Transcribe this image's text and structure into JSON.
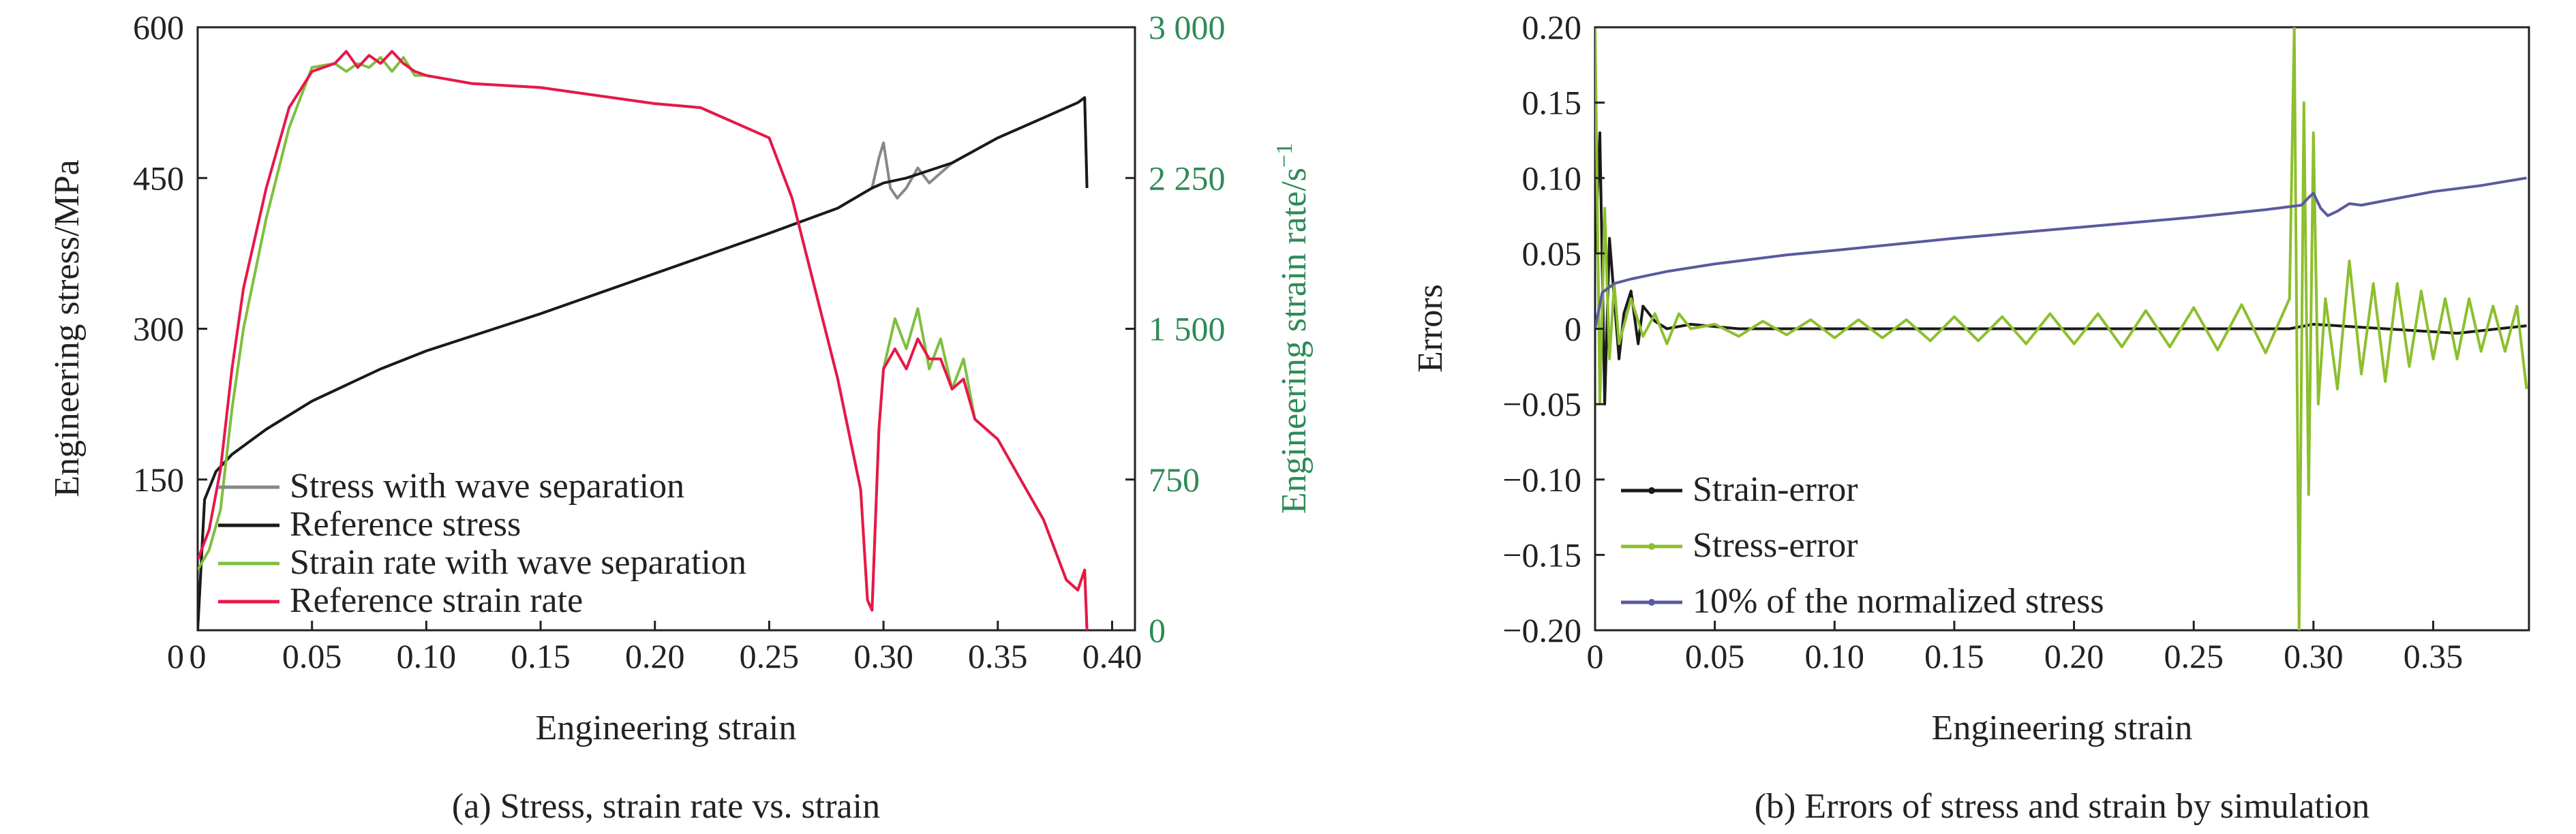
{
  "colors": {
    "axis": "#222222",
    "green_axis": "#2e8b57",
    "stress_ws": "#888888",
    "stress_ref": "#1a1a1a",
    "rate_ws": "#7fbf3f",
    "rate_ref": "#e8174a",
    "strain_error": "#1a1a1a",
    "stress_error": "#8dbf2e",
    "norm_stress": "#5a5aa0"
  },
  "chart_data": [
    {
      "type": "line",
      "caption": "(a) Stress, strain rate vs. strain",
      "xlabel": "Engineering strain",
      "ylabel": "Engineering stress/MPa",
      "y2label": "Engineering strain rate/s",
      "y2label_sup": "−1",
      "xlim": [
        0,
        0.41
      ],
      "ylim": [
        0,
        600
      ],
      "y2lim": [
        0,
        3000
      ],
      "x_ticks": [
        "0",
        "0.05",
        "0.10",
        "0.15",
        "0.20",
        "0.25",
        "0.30",
        "0.35",
        "0.40"
      ],
      "y_ticks": [
        "600",
        "450",
        "300",
        "150"
      ],
      "y2_ticks": [
        "3 000",
        "2 250",
        "1 500",
        "750",
        "0"
      ],
      "legend_position": "bottom-left",
      "series": [
        {
          "name": "Stress with wave separation",
          "axis": "left",
          "color": "#888888",
          "x": [
            0.0,
            0.003,
            0.008,
            0.015,
            0.03,
            0.05,
            0.08,
            0.1,
            0.15,
            0.2,
            0.25,
            0.28,
            0.295,
            0.298,
            0.3,
            0.303,
            0.306,
            0.31,
            0.315,
            0.32,
            0.33,
            0.35,
            0.37,
            0.385,
            0.388,
            0.389
          ],
          "y": [
            0,
            130,
            158,
            175,
            200,
            228,
            260,
            278,
            315,
            355,
            395,
            420,
            440,
            470,
            485,
            440,
            430,
            440,
            460,
            445,
            465,
            490,
            510,
            525,
            530,
            440
          ]
        },
        {
          "name": "Reference stress",
          "axis": "left",
          "color": "#1a1a1a",
          "x": [
            0.0,
            0.003,
            0.008,
            0.015,
            0.03,
            0.05,
            0.08,
            0.1,
            0.15,
            0.2,
            0.25,
            0.28,
            0.295,
            0.3,
            0.31,
            0.33,
            0.35,
            0.37,
            0.385,
            0.388,
            0.389
          ],
          "y": [
            0,
            130,
            158,
            175,
            200,
            228,
            260,
            278,
            315,
            355,
            395,
            420,
            440,
            445,
            450,
            465,
            490,
            510,
            525,
            530,
            440
          ]
        },
        {
          "name": "Strain rate with wave separation",
          "axis": "right",
          "color": "#7fbf3f",
          "x": [
            0.0,
            0.005,
            0.01,
            0.015,
            0.02,
            0.03,
            0.04,
            0.05,
            0.06,
            0.065,
            0.07,
            0.075,
            0.08,
            0.085,
            0.09,
            0.095,
            0.1,
            0.11,
            0.12,
            0.15,
            0.2,
            0.22,
            0.25,
            0.26,
            0.27,
            0.28,
            0.29,
            0.293,
            0.295,
            0.298,
            0.3,
            0.305,
            0.31,
            0.315,
            0.32,
            0.325,
            0.33,
            0.335,
            0.34,
            0.35,
            0.36,
            0.37,
            0.38,
            0.385,
            0.388,
            0.389
          ],
          "y": [
            300,
            400,
            600,
            1100,
            1500,
            2050,
            2500,
            2800,
            2820,
            2780,
            2820,
            2800,
            2850,
            2780,
            2850,
            2760,
            2760,
            2740,
            2720,
            2700,
            2620,
            2600,
            2450,
            2150,
            1700,
            1250,
            700,
            150,
            100,
            1000,
            1300,
            1550,
            1400,
            1600,
            1300,
            1450,
            1200,
            1350,
            1050,
            950,
            750,
            550,
            250,
            200,
            300,
            0
          ]
        },
        {
          "name": "Reference strain rate",
          "axis": "right",
          "color": "#e8174a",
          "x": [
            0.0,
            0.005,
            0.01,
            0.015,
            0.02,
            0.03,
            0.04,
            0.05,
            0.06,
            0.065,
            0.07,
            0.075,
            0.08,
            0.085,
            0.09,
            0.095,
            0.1,
            0.11,
            0.12,
            0.15,
            0.2,
            0.22,
            0.25,
            0.26,
            0.27,
            0.28,
            0.29,
            0.293,
            0.295,
            0.298,
            0.3,
            0.305,
            0.31,
            0.315,
            0.32,
            0.325,
            0.33,
            0.335,
            0.34,
            0.35,
            0.36,
            0.37,
            0.38,
            0.385,
            0.388,
            0.389
          ],
          "y": [
            350,
            500,
            800,
            1300,
            1700,
            2200,
            2600,
            2780,
            2820,
            2880,
            2800,
            2860,
            2820,
            2880,
            2820,
            2780,
            2760,
            2740,
            2720,
            2700,
            2620,
            2600,
            2450,
            2150,
            1700,
            1250,
            700,
            150,
            100,
            1000,
            1300,
            1400,
            1300,
            1450,
            1350,
            1350,
            1200,
            1250,
            1050,
            950,
            750,
            550,
            250,
            200,
            300,
            0
          ]
        }
      ]
    },
    {
      "type": "line",
      "caption": "(b) Errors of stress and strain by simulation",
      "xlabel": "Engineering strain",
      "ylabel": "Errors",
      "xlim": [
        0,
        0.39
      ],
      "ylim": [
        -0.2,
        0.2
      ],
      "x_ticks": [
        "0",
        "0.05",
        "0.10",
        "0.15",
        "0.20",
        "0.25",
        "0.30",
        "0.35"
      ],
      "y_ticks": [
        "0.20",
        "0.15",
        "0.10",
        "0.05",
        "0",
        "−0.05",
        "−0.10",
        "−0.15",
        "−0.20"
      ],
      "legend_position": "bottom-left",
      "series": [
        {
          "name": "Strain-error",
          "color": "#1a1a1a",
          "x": [
            0.0,
            0.002,
            0.004,
            0.006,
            0.008,
            0.01,
            0.012,
            0.015,
            0.018,
            0.02,
            0.025,
            0.03,
            0.04,
            0.06,
            0.1,
            0.2,
            0.29,
            0.3,
            0.33,
            0.36,
            0.389
          ],
          "y": [
            0.05,
            0.13,
            -0.05,
            0.06,
            0.02,
            -0.02,
            0.01,
            0.025,
            -0.01,
            0.015,
            0.005,
            0.0,
            0.003,
            0.0,
            0.0,
            0.0,
            0.0,
            0.003,
            0.0,
            -0.003,
            0.002
          ]
        },
        {
          "name": "Stress-error",
          "color": "#8dbf2e",
          "x": [
            0.0,
            0.002,
            0.004,
            0.006,
            0.008,
            0.01,
            0.015,
            0.02,
            0.025,
            0.03,
            0.035,
            0.04,
            0.05,
            0.06,
            0.07,
            0.08,
            0.09,
            0.1,
            0.11,
            0.12,
            0.13,
            0.14,
            0.15,
            0.16,
            0.17,
            0.18,
            0.19,
            0.2,
            0.21,
            0.22,
            0.23,
            0.24,
            0.25,
            0.26,
            0.27,
            0.28,
            0.29,
            0.292,
            0.294,
            0.296,
            0.298,
            0.3,
            0.302,
            0.305,
            0.31,
            0.315,
            0.32,
            0.325,
            0.33,
            0.335,
            0.34,
            0.345,
            0.35,
            0.355,
            0.36,
            0.365,
            0.37,
            0.375,
            0.38,
            0.385,
            0.389
          ],
          "y": [
            0.2,
            -0.05,
            0.08,
            -0.02,
            0.03,
            -0.01,
            0.02,
            -0.005,
            0.01,
            -0.01,
            0.01,
            0.0,
            0.003,
            -0.005,
            0.005,
            -0.004,
            0.006,
            -0.006,
            0.006,
            -0.006,
            0.006,
            -0.008,
            0.008,
            -0.008,
            0.008,
            -0.01,
            0.01,
            -0.01,
            0.01,
            -0.012,
            0.012,
            -0.012,
            0.014,
            -0.014,
            0.016,
            -0.016,
            0.02,
            0.2,
            -0.2,
            0.15,
            -0.11,
            0.13,
            -0.05,
            0.02,
            -0.04,
            0.045,
            -0.03,
            0.03,
            -0.035,
            0.03,
            -0.025,
            0.025,
            -0.02,
            0.02,
            -0.02,
            0.02,
            -0.015,
            0.015,
            -0.015,
            0.015,
            -0.04
          ]
        },
        {
          "name": "10% of the normalized stress",
          "color": "#5a5aa0",
          "x": [
            0.0,
            0.003,
            0.008,
            0.015,
            0.03,
            0.05,
            0.08,
            0.1,
            0.15,
            0.2,
            0.25,
            0.28,
            0.295,
            0.298,
            0.3,
            0.303,
            0.306,
            0.31,
            0.315,
            0.32,
            0.33,
            0.35,
            0.37,
            0.385,
            0.389
          ],
          "y": [
            0.0,
            0.024,
            0.03,
            0.033,
            0.038,
            0.043,
            0.049,
            0.052,
            0.06,
            0.067,
            0.074,
            0.079,
            0.082,
            0.087,
            0.09,
            0.08,
            0.075,
            0.078,
            0.083,
            0.082,
            0.085,
            0.091,
            0.095,
            0.099,
            0.1
          ]
        }
      ]
    }
  ]
}
